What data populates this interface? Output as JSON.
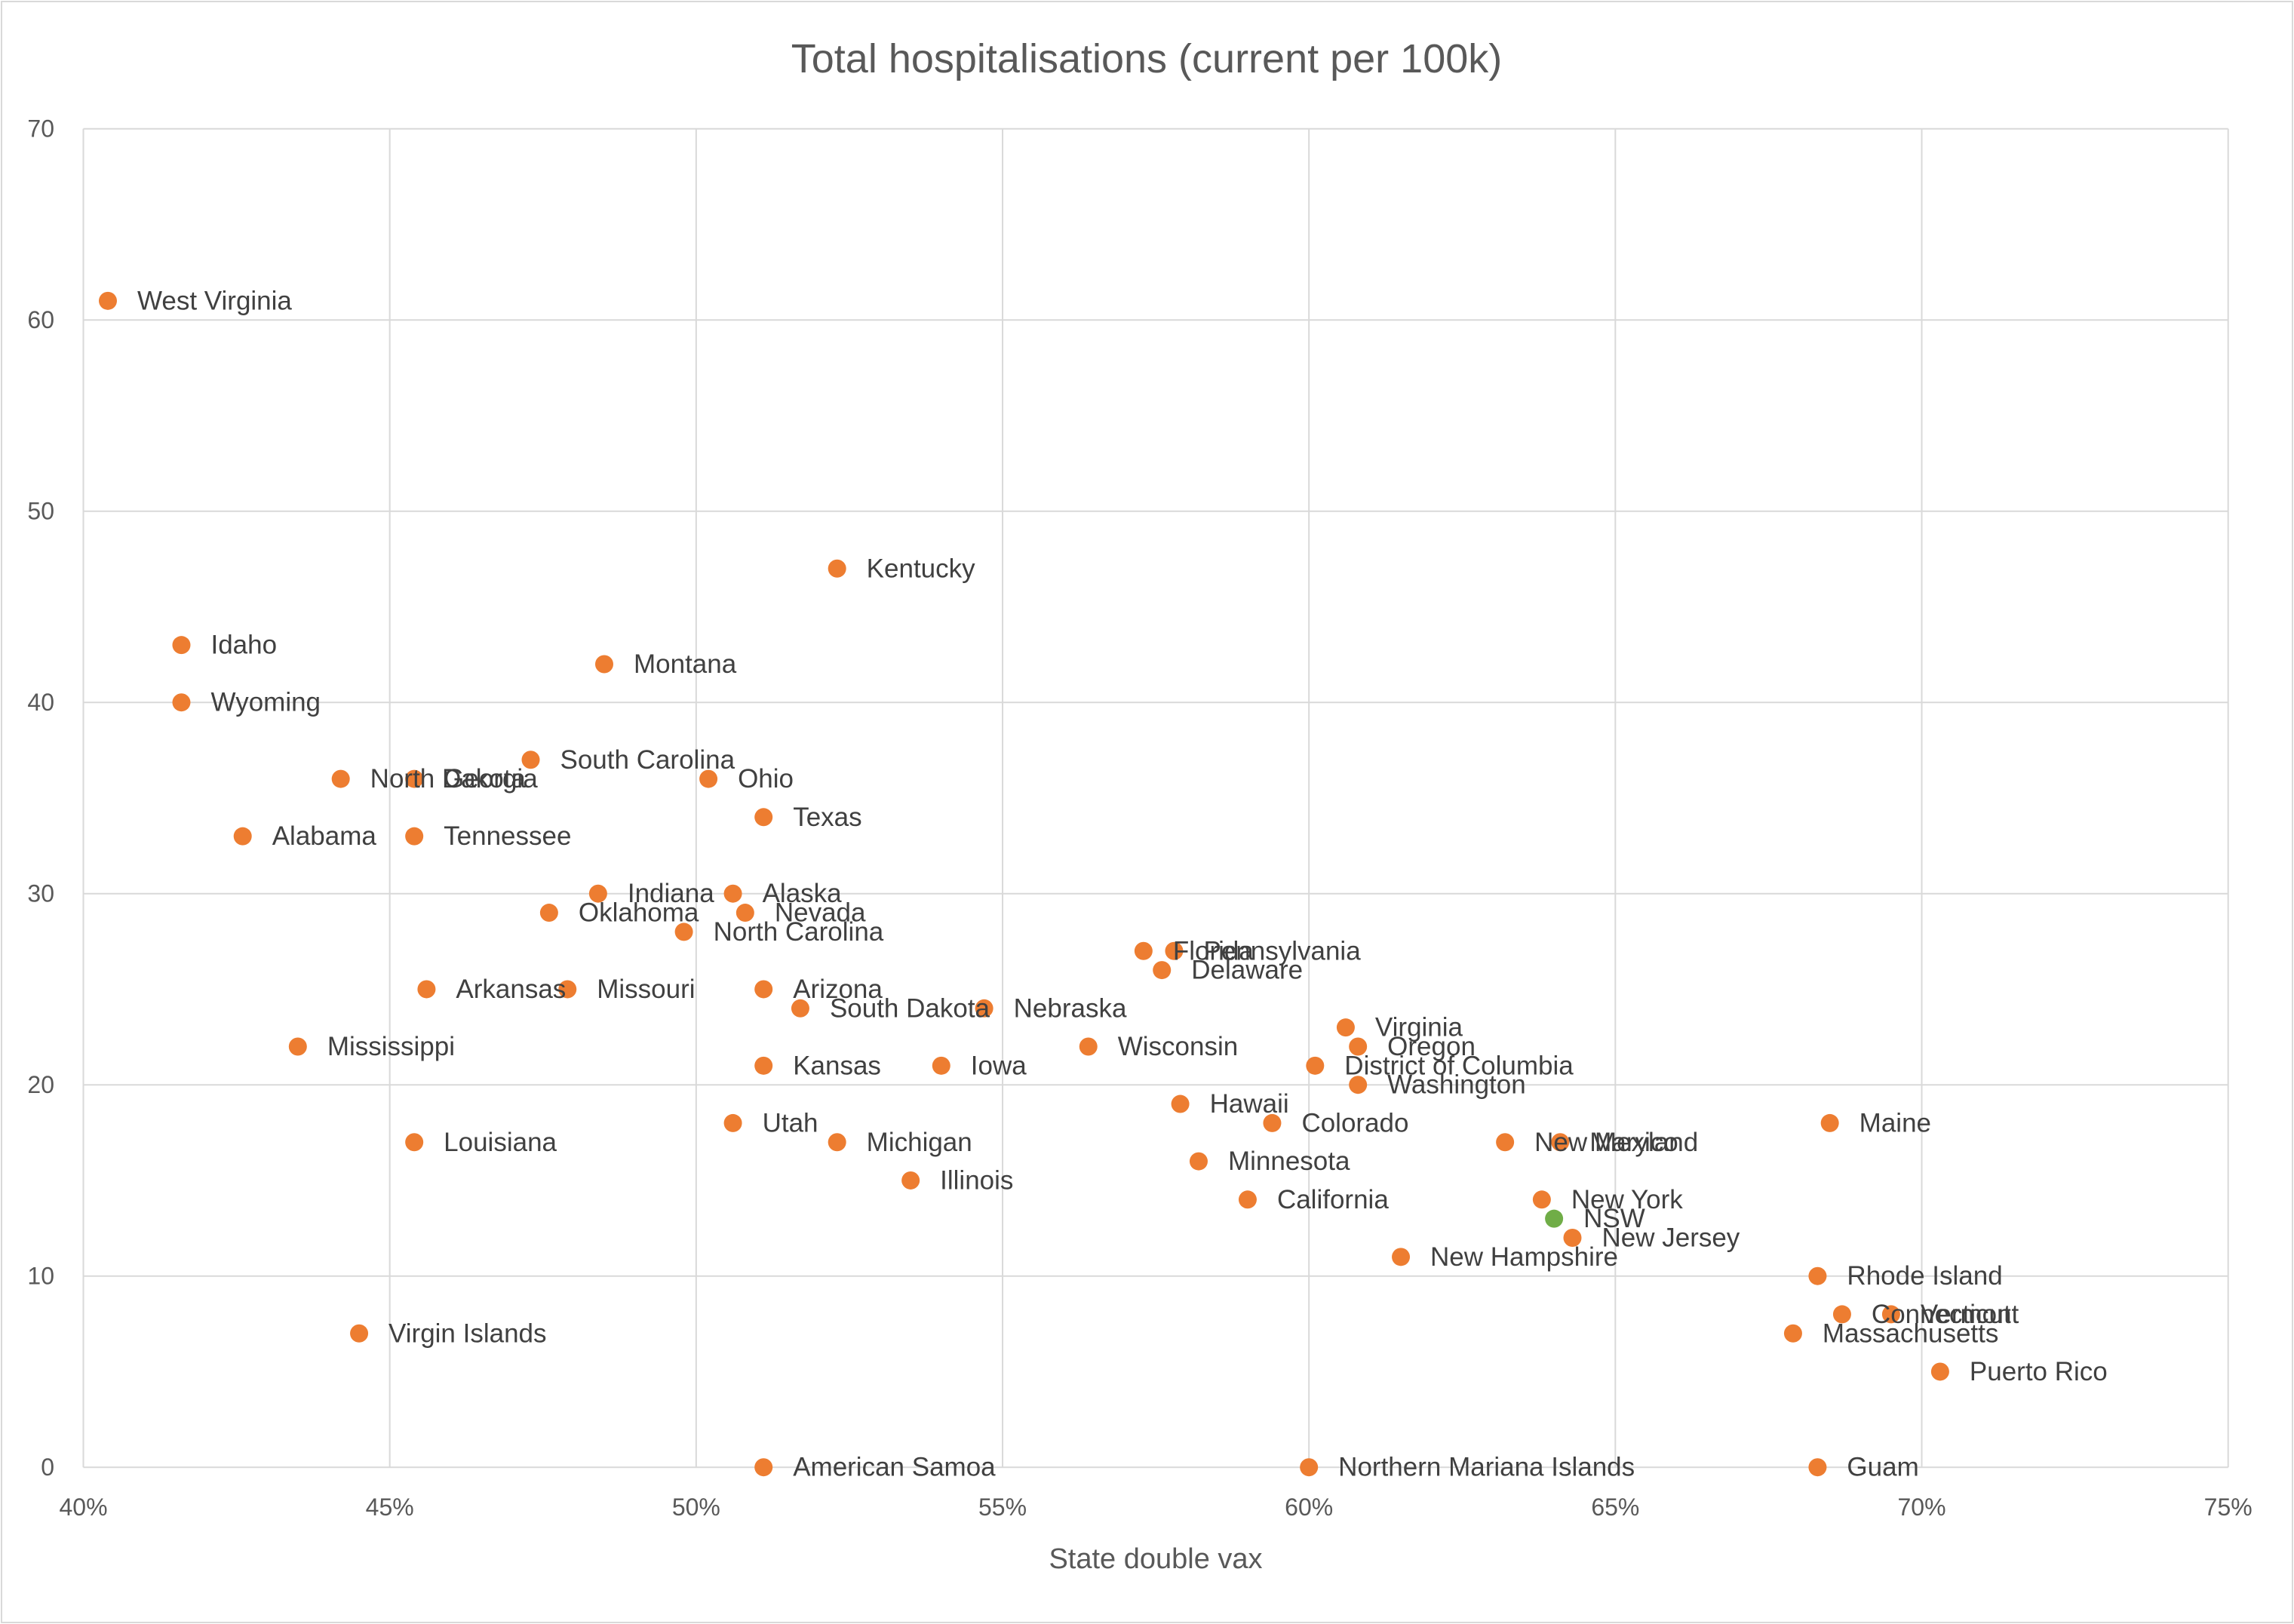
{
  "chart_data": {
    "type": "scatter",
    "title": "Total hospitalisations (current per 100k)",
    "xlabel": "State double vax",
    "ylabel": "",
    "xlim": [
      40,
      75
    ],
    "ylim": [
      0,
      70
    ],
    "x_ticks": [
      40,
      45,
      50,
      55,
      60,
      65,
      70,
      75
    ],
    "x_tick_labels": [
      "40%",
      "45%",
      "50%",
      "55%",
      "60%",
      "65%",
      "70%",
      "75%"
    ],
    "y_ticks": [
      0,
      10,
      20,
      30,
      40,
      50,
      60,
      70
    ],
    "y_tick_labels": [
      "0",
      "10",
      "20",
      "30",
      "40",
      "50",
      "60",
      "70"
    ],
    "grid": true,
    "legend": "none",
    "colors": {
      "point": "#ED7D31",
      "highlight": "#70AD47",
      "grid": "#D9D9D9"
    },
    "points": [
      {
        "label": "West Virginia",
        "x": 40.4,
        "y": 61
      },
      {
        "label": "Idaho",
        "x": 41.6,
        "y": 43
      },
      {
        "label": "Wyoming",
        "x": 41.6,
        "y": 40
      },
      {
        "label": "North Dakota",
        "x": 44.2,
        "y": 36
      },
      {
        "label": "Georgia",
        "x": 45.4,
        "y": 36
      },
      {
        "label": "Alabama",
        "x": 42.6,
        "y": 33
      },
      {
        "label": "Tennessee",
        "x": 45.4,
        "y": 33
      },
      {
        "label": "South Carolina",
        "x": 47.3,
        "y": 37
      },
      {
        "label": "Montana",
        "x": 48.5,
        "y": 42
      },
      {
        "label": "Kentucky",
        "x": 52.3,
        "y": 47
      },
      {
        "label": "Ohio",
        "x": 50.2,
        "y": 36
      },
      {
        "label": "Texas",
        "x": 51.1,
        "y": 34
      },
      {
        "label": "Indiana",
        "x": 48.4,
        "y": 30
      },
      {
        "label": "Alaska",
        "x": 50.6,
        "y": 30
      },
      {
        "label": "Oklahoma",
        "x": 47.6,
        "y": 29
      },
      {
        "label": "Nevada",
        "x": 50.8,
        "y": 29
      },
      {
        "label": "North Carolina",
        "x": 49.8,
        "y": 28
      },
      {
        "label": "Arkansas",
        "x": 45.6,
        "y": 25
      },
      {
        "label": "Missouri",
        "x": 47.9,
        "y": 25
      },
      {
        "label": "Arizona",
        "x": 51.1,
        "y": 25
      },
      {
        "label": "South Dakota",
        "x": 51.7,
        "y": 24
      },
      {
        "label": "Nebraska",
        "x": 54.7,
        "y": 24
      },
      {
        "label": "Mississippi",
        "x": 43.5,
        "y": 22
      },
      {
        "label": "Kansas",
        "x": 51.1,
        "y": 21
      },
      {
        "label": "Iowa",
        "x": 54.0,
        "y": 21
      },
      {
        "label": "Wisconsin",
        "x": 56.4,
        "y": 22
      },
      {
        "label": "Florida",
        "x": 57.3,
        "y": 27
      },
      {
        "label": "Pennsylvania",
        "x": 57.8,
        "y": 27
      },
      {
        "label": "Delaware",
        "x": 57.6,
        "y": 26
      },
      {
        "label": "Virginia",
        "x": 60.6,
        "y": 23
      },
      {
        "label": "Oregon",
        "x": 60.8,
        "y": 22
      },
      {
        "label": "District of Columbia",
        "x": 60.1,
        "y": 21
      },
      {
        "label": "Washington",
        "x": 60.8,
        "y": 20
      },
      {
        "label": "Hawaii",
        "x": 57.9,
        "y": 19
      },
      {
        "label": "Colorado",
        "x": 59.4,
        "y": 18
      },
      {
        "label": "Utah",
        "x": 50.6,
        "y": 18
      },
      {
        "label": "Louisiana",
        "x": 45.4,
        "y": 17
      },
      {
        "label": "Michigan",
        "x": 52.3,
        "y": 17
      },
      {
        "label": "Illinois",
        "x": 53.5,
        "y": 15
      },
      {
        "label": "Minnesota",
        "x": 58.2,
        "y": 16
      },
      {
        "label": "California",
        "x": 59.0,
        "y": 14
      },
      {
        "label": "New Mexico",
        "x": 63.2,
        "y": 17
      },
      {
        "label": "Maryland",
        "x": 64.1,
        "y": 17
      },
      {
        "label": "Maine",
        "x": 68.5,
        "y": 18
      },
      {
        "label": "New York",
        "x": 63.8,
        "y": 14
      },
      {
        "label": "NSW",
        "x": 64.0,
        "y": 13,
        "highlight": true
      },
      {
        "label": "New Jersey",
        "x": 64.3,
        "y": 12
      },
      {
        "label": "New Hampshire",
        "x": 61.5,
        "y": 11
      },
      {
        "label": "Rhode Island",
        "x": 68.3,
        "y": 10
      },
      {
        "label": "Connecticut",
        "x": 68.7,
        "y": 8
      },
      {
        "label": "Vermont",
        "x": 69.5,
        "y": 8
      },
      {
        "label": "Massachusetts",
        "x": 67.9,
        "y": 7
      },
      {
        "label": "Puerto Rico",
        "x": 70.3,
        "y": 5
      },
      {
        "label": "Virgin Islands",
        "x": 44.5,
        "y": 7
      },
      {
        "label": "American Samoa",
        "x": 51.1,
        "y": 0
      },
      {
        "label": "Northern Mariana Islands",
        "x": 60.0,
        "y": 0
      },
      {
        "label": "Guam",
        "x": 68.3,
        "y": 0
      }
    ]
  }
}
